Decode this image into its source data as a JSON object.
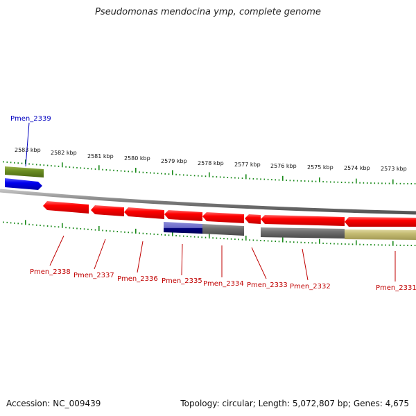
{
  "title": "Pseudomonas mendocina ymp, complete genome",
  "footer": {
    "accession": "Accession: NC_009439",
    "summary": "Topology: circular; Length: 5,072,807 bp; Genes: 4,675"
  },
  "colors": {
    "forward_gene": "#0000e6",
    "reverse_gene": "#f20000",
    "gray_feature": "#707070",
    "olive_feature": "#6b8e23",
    "khaki_feature": "#c8c07a",
    "tick": "#1a8a1a",
    "backbone": "#8a8a8a",
    "blue_label": "#0000c0",
    "red_label": "#c00000"
  },
  "scale_labels": [
    "2583 kbp",
    "2582 kbp",
    "2581 kbp",
    "2580 kbp",
    "2579 kbp",
    "2578 kbp",
    "2577 kbp",
    "2576 kbp",
    "2575 kbp",
    "2574 kbp",
    "2573 kbp"
  ],
  "genes": [
    {
      "name": "Pmen_2339",
      "strand": "forward"
    },
    {
      "name": "Pmen_2338",
      "strand": "reverse"
    },
    {
      "name": "Pmen_2337",
      "strand": "reverse"
    },
    {
      "name": "Pmen_2336",
      "strand": "reverse"
    },
    {
      "name": "Pmen_2335",
      "strand": "reverse"
    },
    {
      "name": "Pmen_2334",
      "strand": "reverse"
    },
    {
      "name": "Pmen_2333",
      "strand": "reverse"
    },
    {
      "name": "Pmen_2332",
      "strand": "reverse"
    },
    {
      "name": "Pmen_2331",
      "strand": "reverse"
    }
  ]
}
